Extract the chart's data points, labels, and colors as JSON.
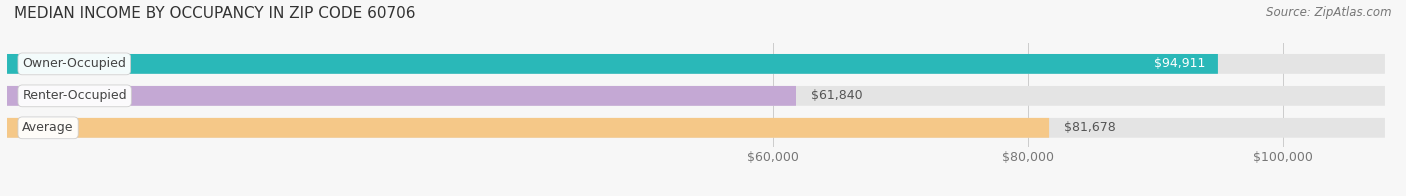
{
  "title": "MEDIAN INCOME BY OCCUPANCY IN ZIP CODE 60706",
  "source": "Source: ZipAtlas.com",
  "categories": [
    "Owner-Occupied",
    "Renter-Occupied",
    "Average"
  ],
  "values": [
    94911,
    61840,
    81678
  ],
  "labels": [
    "$94,911",
    "$61,840",
    "$81,678"
  ],
  "label_colors": [
    "#ffffff",
    "#555555",
    "#555555"
  ],
  "label_inside": [
    true,
    false,
    false
  ],
  "bar_colors": [
    "#2ab8b8",
    "#c4a8d4",
    "#f5c888"
  ],
  "bg_bar_color": "#e4e4e4",
  "xticks": [
    60000,
    80000,
    100000
  ],
  "xticklabels": [
    "$60,000",
    "$80,000",
    "$100,000"
  ],
  "xlim_max": 108000,
  "background_color": "#f7f7f7",
  "title_fontsize": 11,
  "source_fontsize": 8.5,
  "label_fontsize": 9,
  "cat_fontsize": 9,
  "tick_fontsize": 9,
  "figsize": [
    14.06,
    1.96
  ],
  "dpi": 100
}
